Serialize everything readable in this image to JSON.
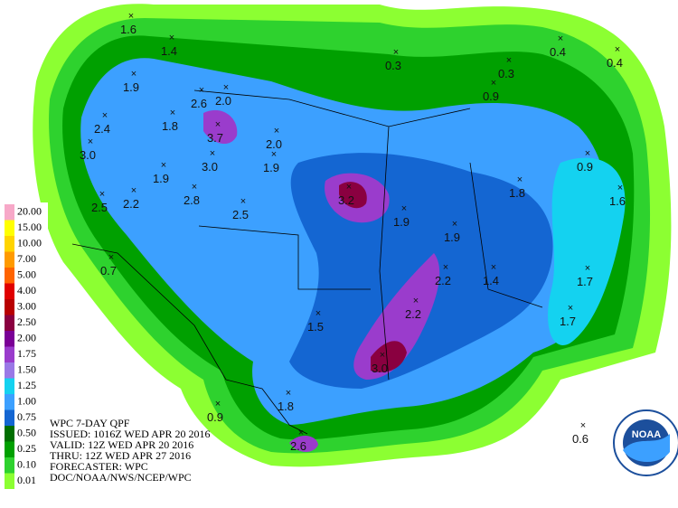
{
  "legend": {
    "items": [
      {
        "label": "20.00",
        "color": "#f7a8c8"
      },
      {
        "label": "15.00",
        "color": "#ffff00"
      },
      {
        "label": "10.00",
        "color": "#ffd400"
      },
      {
        "label": "7.00",
        "color": "#ff9a00"
      },
      {
        "label": "5.00",
        "color": "#ff6400"
      },
      {
        "label": "4.00",
        "color": "#e00000"
      },
      {
        "label": "3.00",
        "color": "#b80000"
      },
      {
        "label": "2.50",
        "color": "#8a0040"
      },
      {
        "label": "2.00",
        "color": "#7a0096"
      },
      {
        "label": "1.75",
        "color": "#9a3ccc"
      },
      {
        "label": "1.50",
        "color": "#9a78e6"
      },
      {
        "label": "1.25",
        "color": "#14d2f0"
      },
      {
        "label": "1.00",
        "color": "#3ca0ff"
      },
      {
        "label": "0.75",
        "color": "#1466d2"
      },
      {
        "label": "0.50",
        "color": "#006e00"
      },
      {
        "label": "0.25",
        "color": "#00a000"
      },
      {
        "label": "0.10",
        "color": "#2ed22e"
      },
      {
        "label": "0.01",
        "color": "#8cff32"
      }
    ]
  },
  "maxima": [
    "1.6",
    "1.4",
    "1.9",
    "2.0",
    "2.6",
    "2.4",
    "1.8",
    "3.7",
    "2.0",
    "3.0",
    "1.9",
    "3.0",
    "1.9",
    "2.8",
    "2.5",
    "2.2",
    "2.5",
    "0.3",
    "0.3",
    "0.9",
    "0.4",
    "0.4",
    "0.9",
    "1.8",
    "1.6",
    "3.2",
    "1.9",
    "1.9",
    "0.7",
    "2.2",
    "1.4",
    "1.7",
    "1.5",
    "2.2",
    "1.7",
    "3.0",
    "1.8",
    "0.9",
    "2.6",
    "0.6"
  ],
  "info": {
    "lines": [
      "WPC 7-DAY QPF",
      "ISSUED: 1016Z WED APR 20 2016",
      "VALID: 12Z WED APR 20 2016",
      "THRU: 12Z WED APR 27 2016",
      "FORECASTER: WPC",
      "DOC/NOAA/NWS/NCEP/WPC"
    ]
  },
  "logo": {
    "text": "NOAA"
  }
}
